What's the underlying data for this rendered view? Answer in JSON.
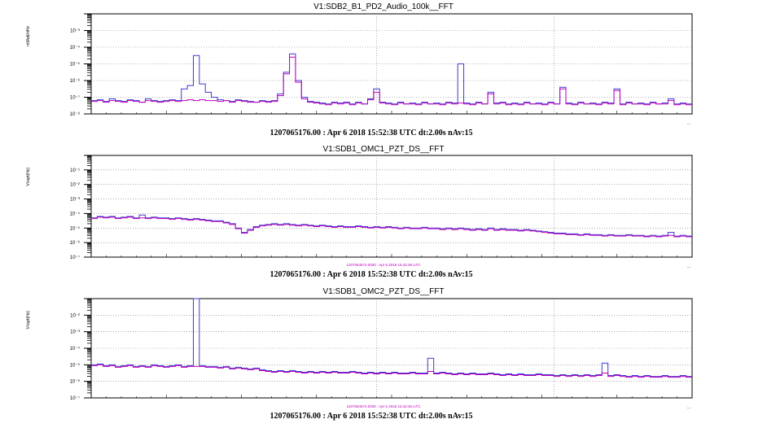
{
  "chart_data": [
    {
      "type": "line",
      "title": "V1:SDB2_B1_PD2_Audio_100k__FFT",
      "ylabel": "mWatt/rtHz",
      "x_end_label": "...",
      "y_log_range": [
        -8,
        -2
      ],
      "y_tick_labels": [
        "10⁻³",
        "10⁻⁴",
        "10⁻⁵",
        "10⁻⁶",
        "10⁻⁷",
        "10⁻⁸"
      ],
      "grid": true,
      "footer": "1207065176.00 : Apr  6 2018 15:52:38 UTC dt:2.00s nAv:15",
      "small_label": "",
      "series": [
        {
          "color": "#3a3ad0",
          "values": [
            -7.2,
            -7.15,
            -7.25,
            -7.1,
            -7.2,
            -7.25,
            -7.15,
            -7.2,
            -7.3,
            -7.1,
            -7.2,
            -7.25,
            -7.2,
            -7.15,
            -7.2,
            -6.5,
            -6.3,
            -4.5,
            -6.2,
            -6.7,
            -7.0,
            -7.15,
            -7.2,
            -7.25,
            -7.15,
            -7.2,
            -7.25,
            -7.3,
            -7.2,
            -7.25,
            -7.2,
            -6.8,
            -5.5,
            -4.4,
            -6.0,
            -7.0,
            -7.25,
            -7.3,
            -7.35,
            -7.4,
            -7.3,
            -7.35,
            -7.3,
            -7.4,
            -7.3,
            -7.4,
            -7.1,
            -6.5,
            -7.3,
            -7.35,
            -7.4,
            -7.3,
            -7.4,
            -7.35,
            -7.4,
            -7.3,
            -7.4,
            -7.35,
            -7.4,
            -7.3,
            -7.35,
            -5.0,
            -7.35,
            -7.4,
            -7.3,
            -7.4,
            -6.7,
            -7.35,
            -7.3,
            -7.4,
            -7.35,
            -7.4,
            -7.3,
            -7.4,
            -7.35,
            -7.4,
            -7.3,
            -7.4,
            -6.4,
            -7.35,
            -7.4,
            -7.3,
            -7.4,
            -7.35,
            -7.4,
            -7.3,
            -7.35,
            -6.5,
            -7.4,
            -7.3,
            -7.4,
            -7.35,
            -7.4,
            -7.3,
            -7.4,
            -7.35,
            -7.1,
            -7.4,
            -7.35,
            -7.4
          ]
        },
        {
          "color": "#c000c0",
          "values": [
            -7.25,
            -7.2,
            -7.3,
            -7.2,
            -7.25,
            -7.3,
            -7.2,
            -7.25,
            -7.3,
            -7.2,
            -7.25,
            -7.3,
            -7.25,
            -7.2,
            -7.25,
            -7.2,
            -7.15,
            -7.2,
            -7.15,
            -7.2,
            -7.2,
            -7.25,
            -7.2,
            -7.3,
            -7.2,
            -7.25,
            -7.3,
            -7.3,
            -7.25,
            -7.3,
            -7.25,
            -6.9,
            -5.6,
            -4.6,
            -6.1,
            -7.1,
            -7.3,
            -7.35,
            -7.4,
            -7.45,
            -7.35,
            -7.4,
            -7.35,
            -7.45,
            -7.35,
            -7.4,
            -7.15,
            -6.7,
            -7.35,
            -7.4,
            -7.45,
            -7.35,
            -7.4,
            -7.4,
            -7.45,
            -7.35,
            -7.4,
            -7.4,
            -7.45,
            -7.35,
            -7.4,
            -7.35,
            -7.4,
            -7.45,
            -7.35,
            -7.4,
            -6.8,
            -7.4,
            -7.35,
            -7.45,
            -7.4,
            -7.45,
            -7.35,
            -7.4,
            -7.4,
            -7.45,
            -7.35,
            -7.4,
            -6.5,
            -7.4,
            -7.45,
            -7.35,
            -7.4,
            -7.4,
            -7.45,
            -7.35,
            -7.4,
            -6.6,
            -7.45,
            -7.35,
            -7.4,
            -7.4,
            -7.45,
            -7.35,
            -7.4,
            -7.4,
            -7.2,
            -7.45,
            -7.4,
            -7.45
          ]
        }
      ]
    },
    {
      "type": "line",
      "title": "V1:SDB1_OMC1_PZT_DS__FFT",
      "ylabel": "V/sqrt(Hz)",
      "x_end_label": "...",
      "y_log_range": [
        -8,
        -1
      ],
      "y_tick_labels": [
        "10⁻¹",
        "10⁻²",
        "10⁻³",
        "10⁻⁴",
        "10⁻⁵",
        "10⁻⁶",
        "10⁻⁷"
      ],
      "grid": true,
      "footer": "1207065176.00 : Apr  6 2018 15:52:38 UTC dt:2.00s nAv:15",
      "small_label": "1207064574.0000 : Apr  6 2018 15:42:36 UTC",
      "series": [
        {
          "color": "#3a3ad0",
          "values": [
            -5.3,
            -5.2,
            -5.25,
            -5.2,
            -5.3,
            -5.25,
            -5.2,
            -5.3,
            -5.1,
            -5.3,
            -5.25,
            -5.3,
            -5.3,
            -5.35,
            -5.3,
            -5.35,
            -5.4,
            -5.35,
            -5.4,
            -5.45,
            -5.5,
            -5.5,
            -5.6,
            -5.7,
            -6.0,
            -6.3,
            -6.1,
            -5.9,
            -5.8,
            -5.75,
            -5.7,
            -5.75,
            -5.7,
            -5.75,
            -5.8,
            -5.75,
            -5.8,
            -5.85,
            -5.8,
            -5.85,
            -5.9,
            -5.85,
            -5.9,
            -5.9,
            -5.85,
            -5.9,
            -5.95,
            -5.9,
            -5.95,
            -5.9,
            -5.95,
            -6.0,
            -5.95,
            -6.0,
            -6.0,
            -5.95,
            -6.0,
            -6.0,
            -6.05,
            -6.0,
            -6.05,
            -6.0,
            -6.05,
            -6.1,
            -6.05,
            -6.1,
            -6.0,
            -6.1,
            -6.05,
            -6.1,
            -6.1,
            -6.15,
            -6.1,
            -6.15,
            -6.2,
            -6.25,
            -6.3,
            -6.35,
            -6.35,
            -6.4,
            -6.4,
            -6.45,
            -6.4,
            -6.45,
            -6.45,
            -6.5,
            -6.45,
            -6.5,
            -6.5,
            -6.45,
            -6.5,
            -6.5,
            -6.55,
            -6.5,
            -6.55,
            -6.5,
            -6.3,
            -6.55,
            -6.5,
            -6.55
          ]
        },
        {
          "color": "#c000c0",
          "values": [
            -5.35,
            -5.25,
            -5.3,
            -5.25,
            -5.35,
            -5.3,
            -5.25,
            -5.35,
            -5.3,
            -5.35,
            -5.3,
            -5.35,
            -5.35,
            -5.4,
            -5.35,
            -5.4,
            -5.45,
            -5.4,
            -5.45,
            -5.5,
            -5.55,
            -5.55,
            -5.65,
            -5.75,
            -6.05,
            -6.35,
            -6.15,
            -5.95,
            -5.85,
            -5.8,
            -5.75,
            -5.8,
            -5.75,
            -5.8,
            -5.85,
            -5.8,
            -5.85,
            -5.9,
            -5.85,
            -5.9,
            -5.95,
            -5.9,
            -5.95,
            -5.95,
            -5.9,
            -5.95,
            -6.0,
            -5.95,
            -6.0,
            -5.95,
            -6.0,
            -6.05,
            -6.0,
            -6.05,
            -6.05,
            -6.0,
            -6.05,
            -6.05,
            -6.1,
            -6.05,
            -6.1,
            -6.05,
            -6.1,
            -6.15,
            -6.1,
            -6.15,
            -6.05,
            -6.15,
            -6.1,
            -6.15,
            -6.15,
            -6.2,
            -6.15,
            -6.2,
            -6.25,
            -6.3,
            -6.35,
            -6.4,
            -6.4,
            -6.45,
            -6.45,
            -6.5,
            -6.45,
            -6.5,
            -6.5,
            -6.55,
            -6.5,
            -6.55,
            -6.55,
            -6.5,
            -6.55,
            -6.55,
            -6.6,
            -6.55,
            -6.6,
            -6.55,
            -6.5,
            -6.6,
            -6.55,
            -6.6
          ]
        }
      ]
    },
    {
      "type": "line",
      "title": "V1:SDB1_OMC2_PZT_DS__FFT",
      "ylabel": "V/sqrt(Hz)",
      "x_end_label": "...",
      "y_log_range": [
        -8,
        -2
      ],
      "y_tick_labels": [
        "10⁻²",
        "10⁻³",
        "10⁻⁴",
        "10⁻⁵",
        "10⁻⁶",
        "10⁻⁷"
      ],
      "grid": true,
      "footer": "1207065176.00 : Apr  6 2018 15:52:38 UTC dt:2.00s nAv:15",
      "small_label": "1207064574.0000 : Apr  6 2018 15:42:36 UTC",
      "series": [
        {
          "color": "#3a3ad0",
          "values": [
            -6.0,
            -5.95,
            -6.05,
            -6.0,
            -6.1,
            -6.05,
            -6.0,
            -6.1,
            -6.05,
            -6.1,
            -6.0,
            -6.05,
            -6.1,
            -6.05,
            -6.0,
            -6.1,
            -6.05,
            -2.0,
            -6.05,
            -6.1,
            -6.1,
            -6.15,
            -6.1,
            -6.2,
            -6.15,
            -6.2,
            -6.25,
            -6.2,
            -6.3,
            -6.35,
            -6.4,
            -6.35,
            -6.4,
            -6.35,
            -6.4,
            -6.45,
            -6.4,
            -6.45,
            -6.4,
            -6.45,
            -6.4,
            -6.45,
            -6.45,
            -6.4,
            -6.45,
            -6.5,
            -6.45,
            -6.5,
            -6.45,
            -6.5,
            -6.45,
            -6.5,
            -6.5,
            -6.45,
            -6.5,
            -6.5,
            -5.6,
            -6.5,
            -6.45,
            -6.5,
            -6.55,
            -6.5,
            -6.55,
            -6.5,
            -6.55,
            -6.55,
            -6.5,
            -6.55,
            -6.6,
            -6.55,
            -6.6,
            -6.55,
            -6.6,
            -6.6,
            -6.55,
            -6.6,
            -6.6,
            -6.65,
            -6.6,
            -6.65,
            -6.6,
            -6.65,
            -6.6,
            -6.65,
            -6.6,
            -5.9,
            -6.65,
            -6.6,
            -6.65,
            -6.7,
            -6.65,
            -6.7,
            -6.65,
            -6.7,
            -6.7,
            -6.65,
            -6.7,
            -6.7,
            -6.65,
            -6.7
          ]
        },
        {
          "color": "#c000c0",
          "values": [
            -6.05,
            -6.0,
            -6.1,
            -6.05,
            -6.15,
            -6.1,
            -6.05,
            -6.15,
            -6.1,
            -6.15,
            -6.05,
            -6.1,
            -6.15,
            -6.1,
            -6.05,
            -6.15,
            -6.1,
            -6.1,
            -6.1,
            -6.15,
            -6.15,
            -6.2,
            -6.15,
            -6.25,
            -6.2,
            -6.25,
            -6.3,
            -6.25,
            -6.35,
            -6.4,
            -6.45,
            -6.4,
            -6.45,
            -6.4,
            -6.45,
            -6.5,
            -6.45,
            -6.5,
            -6.45,
            -6.5,
            -6.45,
            -6.5,
            -6.5,
            -6.45,
            -6.5,
            -6.55,
            -6.5,
            -6.55,
            -6.5,
            -6.55,
            -6.5,
            -6.55,
            -6.55,
            -6.5,
            -6.55,
            -6.55,
            -6.4,
            -6.55,
            -6.5,
            -6.55,
            -6.6,
            -6.55,
            -6.6,
            -6.55,
            -6.6,
            -6.6,
            -6.55,
            -6.6,
            -6.65,
            -6.6,
            -6.65,
            -6.6,
            -6.65,
            -6.65,
            -6.6,
            -6.65,
            -6.65,
            -6.7,
            -6.65,
            -6.7,
            -6.65,
            -6.7,
            -6.65,
            -6.7,
            -6.65,
            -6.5,
            -6.7,
            -6.65,
            -6.7,
            -6.75,
            -6.7,
            -6.75,
            -6.7,
            -6.75,
            -6.75,
            -6.7,
            -6.75,
            -6.75,
            -6.7,
            -6.75
          ]
        }
      ]
    }
  ]
}
